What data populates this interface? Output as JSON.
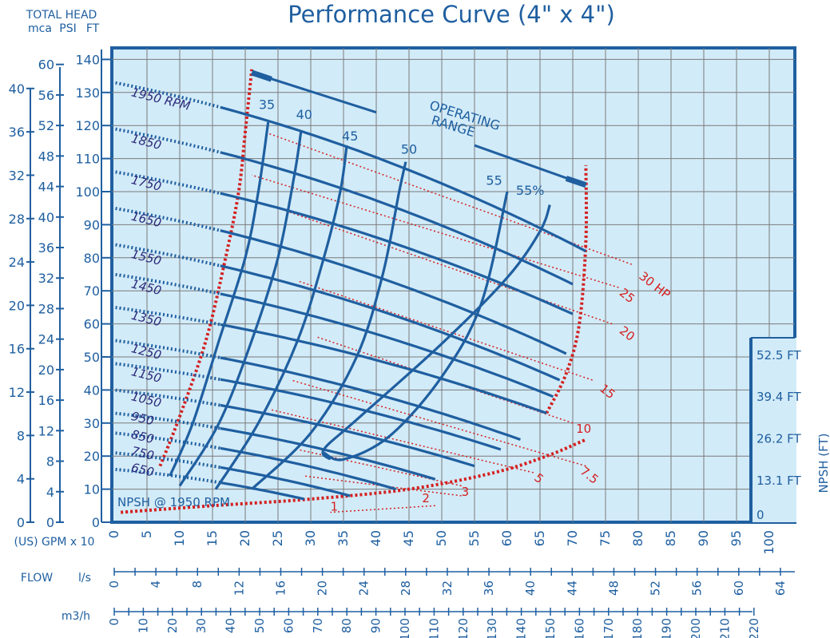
{
  "chart_data": {
    "type": "line",
    "title": "Performance Curve (4\" x 4\")",
    "total_head_label": "TOTAL HEAD",
    "units": {
      "mca": "mca",
      "psi": "PSI",
      "ft": "FT"
    },
    "flow_label": "FLOW",
    "gpm_label": "(US) GPM x 10",
    "ls_label": "l/s",
    "m3h_label": "m3/h",
    "npsh_axis_label": "NPSH (FT)",
    "npsh_curve_label": "NPSH @ 1950 RPM",
    "operating_range_label": [
      "OPERATING",
      "RANGE"
    ],
    "x_gpm_ticks": [
      0,
      5,
      10,
      15,
      20,
      25,
      30,
      35,
      40,
      45,
      50,
      55,
      60,
      65,
      70,
      75,
      80,
      85,
      90,
      95,
      100
    ],
    "x_ls_ticks": [
      0,
      4,
      8,
      12,
      16,
      20,
      24,
      28,
      32,
      36,
      40,
      44,
      48,
      52,
      56,
      60,
      64
    ],
    "x_m3h_ticks": [
      0,
      10,
      20,
      30,
      40,
      50,
      60,
      70,
      80,
      90,
      100,
      110,
      120,
      130,
      140,
      150,
      160,
      170,
      180,
      190,
      200,
      210,
      220
    ],
    "y_ft_ticks": [
      0,
      10,
      20,
      30,
      40,
      50,
      60,
      70,
      80,
      90,
      100,
      110,
      120,
      130,
      140
    ],
    "y_psi_ticks": [
      0,
      4,
      8,
      12,
      16,
      20,
      24,
      28,
      32,
      36,
      40,
      44,
      48,
      52,
      56,
      60
    ],
    "y_mca_ticks": [
      0,
      4,
      8,
      12,
      16,
      20,
      24,
      28,
      32,
      36,
      40
    ],
    "npsh_ticks": [
      {
        "label": "0",
        "ft": 0
      },
      {
        "label": "13.1 FT",
        "ft": 13.1
      },
      {
        "label": "26.2 FT",
        "ft": 26.2
      },
      {
        "label": "39.4 FT",
        "ft": 39.4
      },
      {
        "label": "52.5 FT",
        "ft": 52.5
      }
    ],
    "xlim": [
      0,
      103
    ],
    "ylim": [
      0,
      143
    ],
    "rpm_curves": [
      {
        "name": "1950 RPM",
        "shutoff": 133,
        "end_gpm": 72,
        "end_head": 82,
        "label_gpm": 2.5,
        "label_head": 129
      },
      {
        "name": "1850",
        "shutoff": 119,
        "end_gpm": 70,
        "end_head": 72,
        "label_gpm": 2.5,
        "label_head": 115
      },
      {
        "name": "1750",
        "shutoff": 106,
        "end_gpm": 70,
        "end_head": 63,
        "label_gpm": 2.5,
        "label_head": 102.5
      },
      {
        "name": "1650",
        "shutoff": 95,
        "end_gpm": 69,
        "end_head": 51,
        "label_gpm": 2.5,
        "label_head": 91.5
      },
      {
        "name": "1550",
        "shutoff": 84,
        "end_gpm": 68,
        "end_head": 43,
        "label_gpm": 2.5,
        "label_head": 80
      },
      {
        "name": "1450",
        "shutoff": 75,
        "end_gpm": 67,
        "end_head": 38,
        "label_gpm": 2.5,
        "label_head": 71
      },
      {
        "name": "1350",
        "shutoff": 65,
        "end_gpm": 66,
        "end_head": 33,
        "label_gpm": 2.5,
        "label_head": 61.5
      },
      {
        "name": "1250",
        "shutoff": 55,
        "end_gpm": 62,
        "end_head": 25,
        "label_gpm": 2.5,
        "label_head": 51.5
      },
      {
        "name": "1150",
        "shutoff": 48,
        "end_gpm": 59,
        "end_head": 22,
        "label_gpm": 2.5,
        "label_head": 44.5
      },
      {
        "name": "1050",
        "shutoff": 40,
        "end_gpm": 55,
        "end_head": 17,
        "label_gpm": 2.5,
        "label_head": 37
      },
      {
        "name": "950",
        "shutoff": 33,
        "end_gpm": 49,
        "end_head": 13,
        "label_gpm": 2.5,
        "label_head": 31
      },
      {
        "name": "850",
        "shutoff": 27,
        "end_gpm": 43,
        "end_head": 10,
        "label_gpm": 2.5,
        "label_head": 25.5
      },
      {
        "name": "750",
        "shutoff": 21,
        "end_gpm": 36,
        "end_head": 8,
        "label_gpm": 2.5,
        "label_head": 20.5
      },
      {
        "name": "650",
        "shutoff": 16,
        "end_gpm": 29,
        "end_head": 7,
        "label_gpm": 2.5,
        "label_head": 15.5
      }
    ],
    "efficiency_curves": [
      {
        "name": "35",
        "points": [
          [
            8.5,
            14
          ],
          [
            12,
            30
          ],
          [
            16,
            55
          ],
          [
            20,
            80
          ],
          [
            22,
            100
          ],
          [
            23.5,
            121
          ]
        ],
        "label_gpm": 23.3,
        "label_head": 125
      },
      {
        "name": "40",
        "points": [
          [
            10,
            11
          ],
          [
            16,
            30
          ],
          [
            21,
            55
          ],
          [
            25,
            80
          ],
          [
            27.5,
            105
          ],
          [
            28.5,
            118
          ]
        ],
        "label_gpm": 29,
        "label_head": 122
      },
      {
        "name": "45",
        "points": [
          [
            15.5,
            10
          ],
          [
            22,
            30
          ],
          [
            28,
            55
          ],
          [
            32,
            80
          ],
          [
            34.5,
            100
          ],
          [
            35.5,
            114
          ]
        ],
        "label_gpm": 36,
        "label_head": 115.5
      },
      {
        "name": "50",
        "points": [
          [
            21,
            10
          ],
          [
            30,
            27
          ],
          [
            37,
            50
          ],
          [
            41,
            75
          ],
          [
            43.5,
            100
          ],
          [
            44.5,
            109
          ]
        ],
        "label_gpm": 45,
        "label_head": 111.5
      },
      {
        "name": "55",
        "points": [
          [
            32,
            21
          ],
          [
            35,
            19
          ],
          [
            42,
            26
          ],
          [
            50,
            44
          ],
          [
            56,
            66
          ],
          [
            60,
            100
          ]
        ],
        "label_gpm": 58,
        "label_head": 102
      },
      {
        "name": "55%",
        "points": [
          [
            33,
            19
          ],
          [
            32,
            22
          ],
          [
            37,
            31
          ],
          [
            50,
            54
          ],
          [
            60,
            74
          ],
          [
            65,
            88
          ],
          [
            66.5,
            96
          ]
        ],
        "label_gpm": 63.5,
        "label_head": 99
      }
    ],
    "hp_lines": [
      {
        "name": "1",
        "label_gpm": 33,
        "label_head": 3.5
      },
      {
        "name": "2",
        "label_gpm": 47,
        "label_head": 6
      },
      {
        "name": "3",
        "label_gpm": 53,
        "label_head": 8
      },
      {
        "name": "5",
        "label_gpm": 64,
        "label_head": 13
      },
      {
        "name": "7.5",
        "label_gpm": 71,
        "label_head": 15
      },
      {
        "name": "10",
        "label_gpm": 70.5,
        "label_head": 27
      },
      {
        "name": "15",
        "label_gpm": 74,
        "label_head": 40
      },
      {
        "name": "20",
        "label_gpm": 77,
        "label_head": 57.5
      },
      {
        "name": "25",
        "label_gpm": 77,
        "label_head": 69
      },
      {
        "name": "30 HP",
        "label_gpm": 80,
        "label_head": 74
      }
    ]
  }
}
